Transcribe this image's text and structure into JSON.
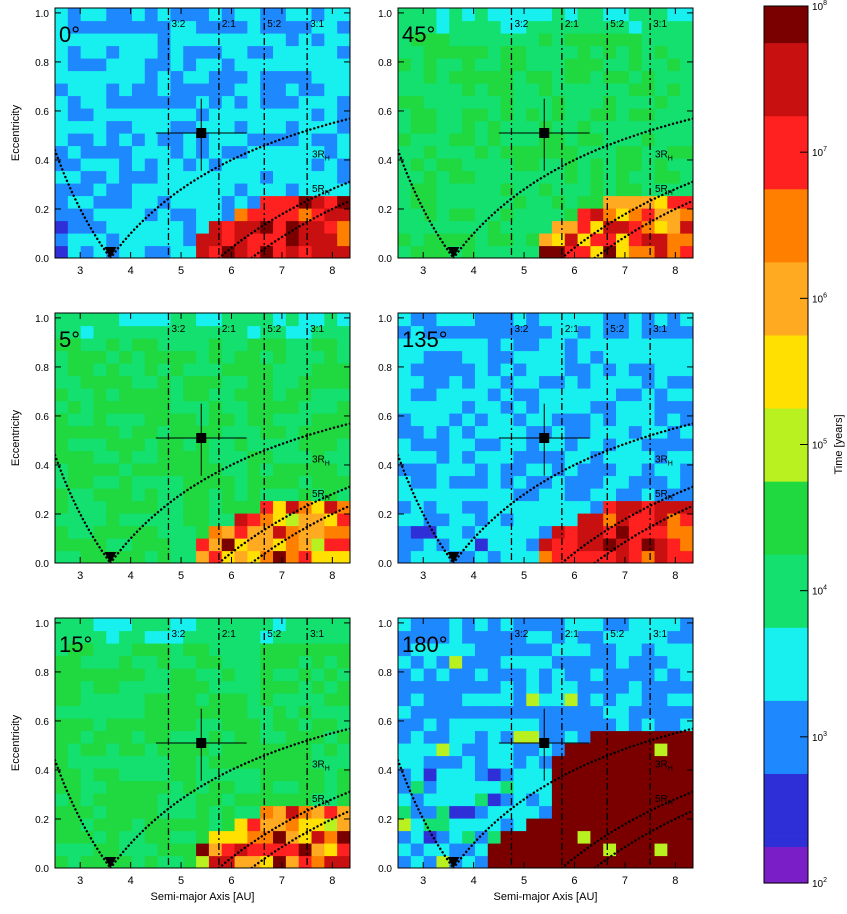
{
  "chart_data": {
    "type": "heatmap",
    "xlabel": "Semi-major Axis [AU]",
    "ylabel": "Eccentricity",
    "xlim": [
      2.5,
      8.35
    ],
    "ylim": [
      0,
      1.02
    ],
    "x_ticks": [
      "3",
      "4",
      "5",
      "6",
      "7",
      "8"
    ],
    "y_ticks": [
      "0.0",
      "0.2",
      "0.4",
      "0.6",
      "0.8",
      "1.0"
    ],
    "resonances": [
      {
        "label": "3:2",
        "a": 4.75
      },
      {
        "label": "2:1",
        "a": 5.75
      },
      {
        "label": "5:2",
        "a": 6.65
      },
      {
        "label": "3:1",
        "a": 7.5
      }
    ],
    "hill_labels": [
      "3R",
      "5R"
    ],
    "hill_subscript": "H",
    "planet_marker": {
      "a": 5.4,
      "e": 0.51,
      "a_err": 0.9,
      "e_err": 0.14
    },
    "triangle_marker": {
      "a": 3.6,
      "e": 0.0
    },
    "panels": [
      {
        "label": "0°",
        "base_level": 3.3,
        "regime": "unstable-fast"
      },
      {
        "label": "45°",
        "base_level": 4.2,
        "regime": "long-lived"
      },
      {
        "label": "5°",
        "base_level": 4.3,
        "regime": "long-lived"
      },
      {
        "label": "135°",
        "base_level": 3.3,
        "regime": "unstable-fast"
      },
      {
        "label": "15°",
        "base_level": 4.3,
        "regime": "long-lived"
      },
      {
        "label": "180°",
        "base_level": 3.2,
        "regime": "mixed"
      }
    ],
    "colorbar": {
      "label": "Time [years]",
      "range": [
        2,
        8
      ],
      "scale": "log",
      "tick_labels": [
        {
          "base": "10",
          "exp": "2"
        },
        {
          "base": "10",
          "exp": "3"
        },
        {
          "base": "10",
          "exp": "4"
        },
        {
          "base": "10",
          "exp": "5"
        },
        {
          "base": "10",
          "exp": "6"
        },
        {
          "base": "10",
          "exp": "7"
        },
        {
          "base": "10",
          "exp": "8"
        }
      ]
    },
    "colors": [
      "#7a1fc8",
      "#2f2fd8",
      "#1e88ff",
      "#18f0f0",
      "#14e070",
      "#20d840",
      "#b8f020",
      "#ffe000",
      "#ffaa20",
      "#ff8000",
      "#ff2020",
      "#c81010",
      "#7a0000"
    ]
  }
}
